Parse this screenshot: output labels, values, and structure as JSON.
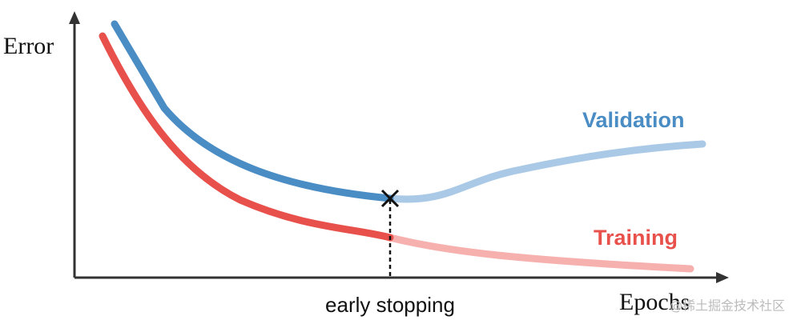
{
  "y_axis_label": "Error",
  "x_axis_label": "Epochs",
  "curves": [
    {
      "label": "Validation"
    },
    {
      "label": "Training"
    }
  ],
  "annotation": "early stopping",
  "watermark": "@稀土掘金技术社区"
}
